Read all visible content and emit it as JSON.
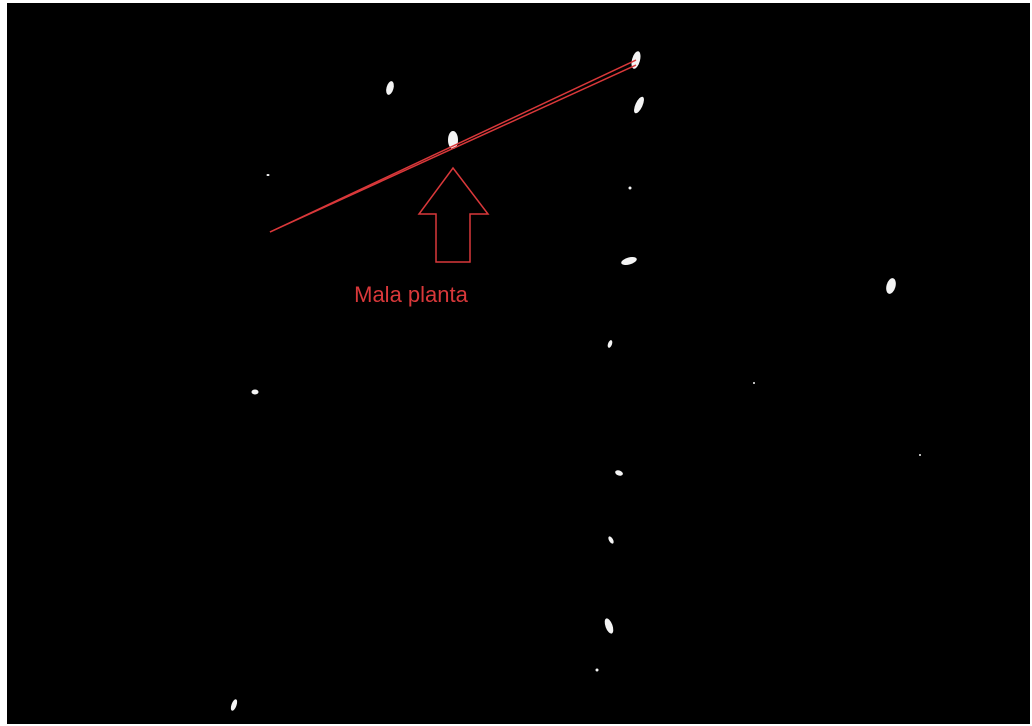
{
  "annotation": {
    "label": "Mala planta"
  }
}
